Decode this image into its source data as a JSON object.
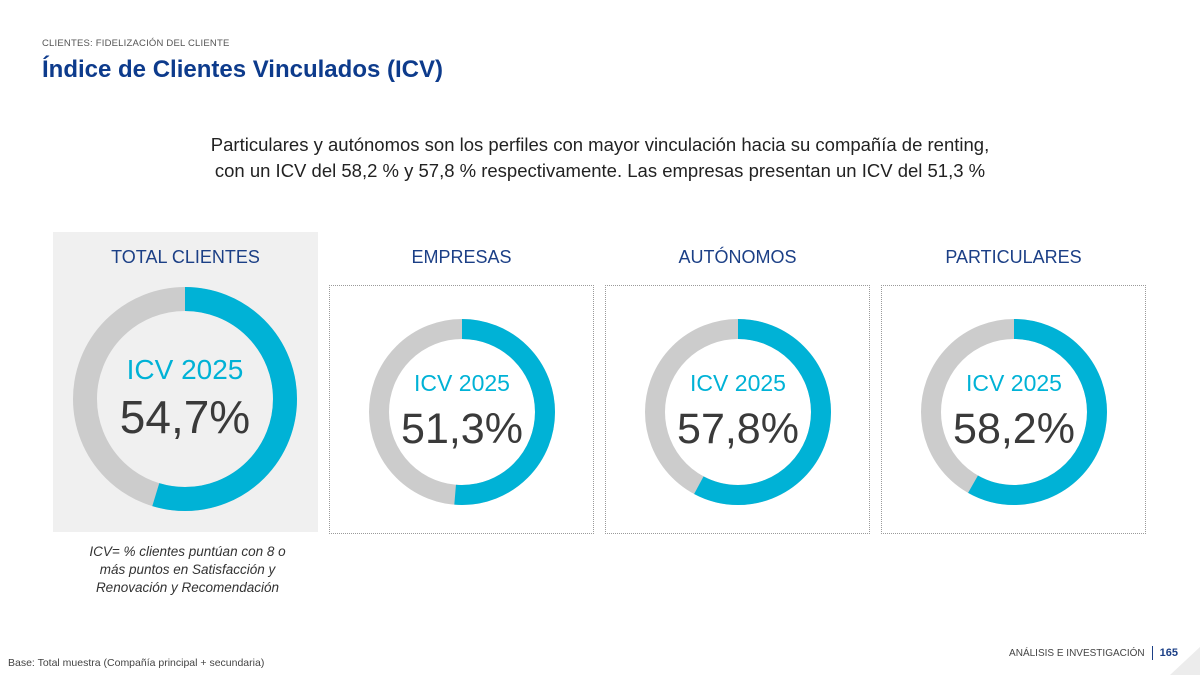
{
  "header": {
    "section": "CLIENTES: FIDELIZACIÓN DEL CLIENTE",
    "title": "Índice de Clientes Vinculados (ICV)"
  },
  "summary": {
    "line1": "Particulares y autónomos son los perfiles con mayor vinculación hacia su compañía de renting,",
    "line2": "con un ICV del 58,2 % y 57,8 % respectivamente. Las empresas presentan un ICV del 51,3 %"
  },
  "chart_data": [
    {
      "type": "pie",
      "title": "TOTAL CLIENTES",
      "label": "ICV 2025",
      "value": 54.7,
      "value_label": "54,7%",
      "colors": {
        "filled": "#00b2d6",
        "remainder": "#cccccc"
      }
    },
    {
      "type": "pie",
      "title": "EMPRESAS",
      "label": "ICV 2025",
      "value": 51.3,
      "value_label": "51,3%",
      "colors": {
        "filled": "#00b2d6",
        "remainder": "#cccccc"
      }
    },
    {
      "type": "pie",
      "title": "AUTÓNOMOS",
      "label": "ICV 2025",
      "value": 57.8,
      "value_label": "57,8%",
      "colors": {
        "filled": "#00b2d6",
        "remainder": "#cccccc"
      }
    },
    {
      "type": "pie",
      "title": "PARTICULARES",
      "label": "ICV 2025",
      "value": 58.2,
      "value_label": "58,2%",
      "colors": {
        "filled": "#00b2d6",
        "remainder": "#cccccc"
      }
    }
  ],
  "note": {
    "line1": "ICV= % clientes puntúan con 8 o",
    "line2": "más puntos en Satisfacción y",
    "line3": "Renovación y Recomendación"
  },
  "base_note": "Base: Total muestra (Compañía principal + secundaria)",
  "footer": {
    "label": "ANÁLISIS E INVESTIGACIÓN",
    "page": "165"
  },
  "colors": {
    "title": "#0d3b8c",
    "segment_title": "#1b3f86",
    "accent": "#00b2d6",
    "ring_remainder": "#cccccc"
  }
}
